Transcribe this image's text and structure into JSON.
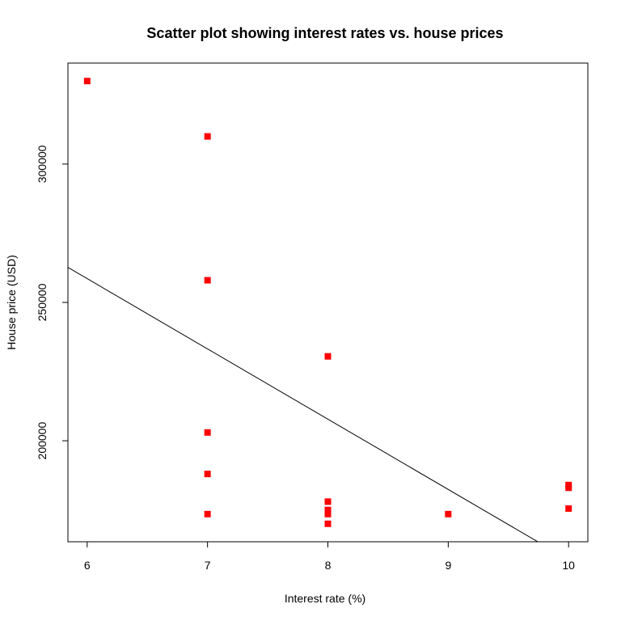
{
  "chart_data": {
    "type": "scatter",
    "title": "Scatter plot showing interest rates vs. house prices",
    "xlabel": "Interest rate (%)",
    "ylabel": "House price (USD)",
    "xlim": [
      5.84,
      10.16
    ],
    "ylim": [
      163500,
      336500
    ],
    "x_ticks": [
      6,
      7,
      8,
      9,
      10
    ],
    "x_tick_labels": [
      "6",
      "7",
      "8",
      "9",
      "10"
    ],
    "y_ticks": [
      200000,
      250000,
      300000
    ],
    "y_tick_labels": [
      "200000",
      "250000",
      "300000"
    ],
    "grid": false,
    "legend": "none",
    "point_color": "#ff0000",
    "point_shape": "square",
    "points": [
      {
        "x": 6,
        "y": 330000
      },
      {
        "x": 7,
        "y": 310000
      },
      {
        "x": 7,
        "y": 258000
      },
      {
        "x": 7,
        "y": 203000
      },
      {
        "x": 7,
        "y": 188000
      },
      {
        "x": 7,
        "y": 173500
      },
      {
        "x": 8,
        "y": 230500
      },
      {
        "x": 8,
        "y": 178000
      },
      {
        "x": 8,
        "y": 175000
      },
      {
        "x": 8,
        "y": 173500
      },
      {
        "x": 8,
        "y": 170000
      },
      {
        "x": 9,
        "y": 173500
      },
      {
        "x": 10,
        "y": 184000
      },
      {
        "x": 10,
        "y": 183000
      },
      {
        "x": 10,
        "y": 175500
      }
    ],
    "regression_line": {
      "color": "#000000",
      "intercept": 411000,
      "slope": -25400
    }
  }
}
